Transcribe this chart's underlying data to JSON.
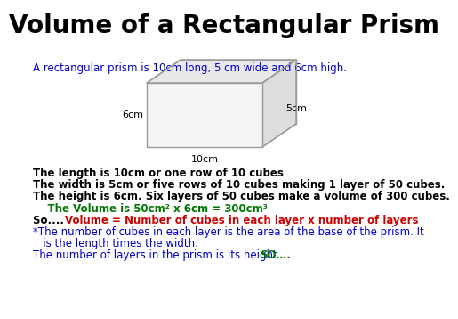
{
  "title": "Volume of a Rectangular Prism",
  "title_fontsize": 20,
  "title_fontweight": "bold",
  "title_color": "#000000",
  "bg_color": "#ffffff",
  "blue_color": "#0000CC",
  "red_color": "#CC0000",
  "green_color": "#007700",
  "black_color": "#000000",
  "subtitle": "A rectangular prism is 10cm long, 5 cm wide and 6cm high.",
  "label_6cm": "6cm",
  "label_5cm": "5cm",
  "label_10cm": "10cm",
  "line1": "The length is 10cm or one row of 10 cubes",
  "line2": "The width is 5cm or five rows of 10 cubes making 1 layer of 50 cubes.",
  "line3": "The height is 6cm. Six layers of 50 cubes make a volume of 300 cubes.",
  "line4": "    The Volume is 50cm² x 6cm = 300cm³",
  "line5a": "So....  ",
  "line5b": "Volume = Number of cubes in each layer x number of layers",
  "line6a": "*The number of cubes in each layer is the area of the base of the prism. It",
  "line6b": "   is the length times the width.",
  "line7a": "The number of layers in the prism is its height",
  "line7b": "SO….",
  "body_fontsize": 8.5,
  "box_edge_color": "#999999",
  "box_face_front": "#f5f5f5",
  "box_face_top": "#e8e8e8",
  "box_face_right": "#dddddd"
}
